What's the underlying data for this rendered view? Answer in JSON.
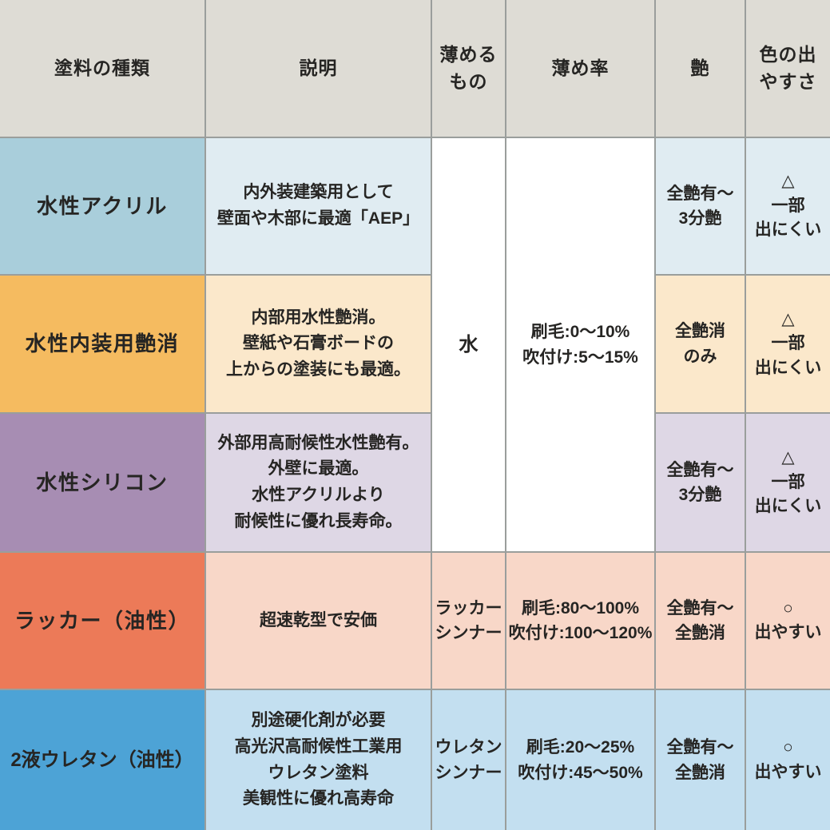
{
  "table": {
    "header": {
      "paint_type": "塗料の種類",
      "description": "説明",
      "thinner": "薄める\nもの",
      "thin_ratio": "薄め率",
      "gloss": "艶",
      "color_ease": "色の出\nやすさ",
      "bg": "#dedcd5"
    },
    "merged": {
      "thinner_rows_1_3": "水",
      "thin_ratio_rows_1_3": "刷毛:0〜10%\n吹付け:5〜15%",
      "bg": "#ffffff"
    },
    "rows": [
      {
        "name": "水性アクリル",
        "description": "内外装建築用として\n壁面や木部に最適「AEP」",
        "gloss": "全艶有〜\n3分艶",
        "color_ease": "△\n一部\n出にくい",
        "name_bg": "#a9cedb",
        "tint_bg": "#e0ecf2"
      },
      {
        "name": "水性内装用艶消",
        "description": "内部用水性艶消。\n壁紙や石膏ボードの\n上からの塗装にも最適。",
        "gloss": "全艶消\nのみ",
        "color_ease": "△\n一部\n出にくい",
        "name_bg": "#f5bb60",
        "tint_bg": "#fbe8cb"
      },
      {
        "name": "水性シリコン",
        "description": "外部用高耐候性水性艶有。\n外壁に最適。\n水性アクリルより\n耐候性に優れ長寿命。",
        "gloss": "全艶有〜\n3分艶",
        "color_ease": "△\n一部\n出にくい",
        "name_bg": "#a78db3",
        "tint_bg": "#ded7e5"
      },
      {
        "name": "ラッカー（油性）",
        "description": "超速乾型で安価",
        "thinner": "ラッカー\nシンナー",
        "thin_ratio": "刷毛:80〜100%\n吹付け:100〜120%",
        "gloss": "全艶有〜\n全艶消",
        "color_ease": "○\n出やすい",
        "name_bg": "#ec7a58",
        "tint_bg": "#f8d7c8"
      },
      {
        "name": "2液ウレタン（油性）",
        "description": "別途硬化剤が必要\n高光沢高耐候性工業用\nウレタン塗料\n美観性に優れ高寿命",
        "thinner": "ウレタン\nシンナー",
        "thin_ratio": "刷毛:20〜25%\n吹付け:45〜50%",
        "gloss": "全艶有〜\n全艶消",
        "color_ease": "○\n出やすい",
        "name_bg": "#4da3d6",
        "tint_bg": "#c3dff0"
      }
    ],
    "palette": {
      "grid_line": "#9a9e9c",
      "text": "#262523",
      "header_bg": "#dedcd5",
      "merged_cell_bg": "#ffffff"
    }
  },
  "chart_data": {
    "type": "table",
    "columns": [
      "塗料の種類",
      "説明",
      "薄めるもの",
      "薄め率",
      "艶",
      "色の出やすさ"
    ],
    "rows": [
      [
        "水性アクリル",
        "内外装建築用として壁面や木部に最適「AEP」",
        "水",
        "刷毛:0〜10% 吹付け:5〜15%",
        "全艶有〜3分艶",
        "△ 一部出にくい"
      ],
      [
        "水性内装用艶消",
        "内部用水性艶消。壁紙や石膏ボードの上からの塗装にも最適。",
        "水",
        "刷毛:0〜10% 吹付け:5〜15%",
        "全艶消のみ",
        "△ 一部出にくい"
      ],
      [
        "水性シリコン",
        "外部用高耐候性水性艶有。外壁に最適。水性アクリルより耐候性に優れ長寿命。",
        "水",
        "刷毛:0〜10% 吹付け:5〜15%",
        "全艶有〜3分艶",
        "△ 一部出にくい"
      ],
      [
        "ラッカー（油性）",
        "超速乾型で安価",
        "ラッカーシンナー",
        "刷毛:80〜100% 吹付け:100〜120%",
        "全艶有〜全艶消",
        "○ 出やすい"
      ],
      [
        "2液ウレタン（油性）",
        "別途硬化剤が必要 高光沢高耐候性工業用ウレタン塗料 美観性に優れ高寿命",
        "ウレタンシンナー",
        "刷毛:20〜25% 吹付け:45〜50%",
        "全艶有〜全艶消",
        "○ 出やすい"
      ]
    ],
    "merged_cells": [
      {
        "column": "薄めるもの",
        "rows": [
          0,
          2
        ],
        "value": "水"
      },
      {
        "column": "薄め率",
        "rows": [
          0,
          2
        ],
        "value": "刷毛:0〜10% 吹付け:5〜15%"
      }
    ],
    "legend": {
      "△": "一部出にくい",
      "○": "出やすい"
    }
  }
}
